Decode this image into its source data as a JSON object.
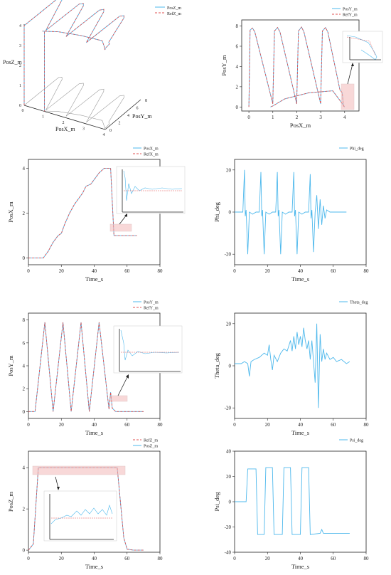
{
  "colors": {
    "actual": "#4db8ec",
    "reference": "#e05050",
    "gray": "#9a9a9a",
    "highlight": "#f3b9b9"
  },
  "chart_data": [
    {
      "id": "xyz3d",
      "type": "line",
      "xlabel": "PosX_m",
      "ylabel": "PosY_m",
      "zlabel": "PosZ_m",
      "x_ticks": [
        "0",
        "1",
        "2",
        "3",
        "4"
      ],
      "y_ticks": [
        "0",
        "2",
        "4",
        "6",
        "8"
      ],
      "z_ticks": [
        "0",
        "1",
        "2",
        "3",
        "4"
      ],
      "series": [
        {
          "name": "PosZ_m"
        },
        {
          "name": "RefZ_m"
        }
      ]
    },
    {
      "id": "xy",
      "type": "line",
      "xlabel": "PosX_m",
      "ylabel": "PosY_m",
      "xlim": [
        -0.3,
        4.6
      ],
      "ylim": [
        -0.4,
        8.6
      ],
      "x_ticks": [
        0,
        1,
        2,
        3,
        4
      ],
      "y_ticks": [
        0,
        2,
        4,
        6,
        8
      ],
      "series": [
        {
          "name": "PosY_m"
        },
        {
          "name": "RefY_m"
        }
      ],
      "path": [
        [
          0,
          0
        ],
        [
          0.05,
          7.6
        ],
        [
          0.15,
          7.8
        ],
        [
          0.25,
          7.4
        ],
        [
          1.0,
          0.3
        ],
        [
          1.0,
          0.6
        ],
        [
          1.07,
          7.5
        ],
        [
          1.2,
          7.85
        ],
        [
          1.3,
          7.4
        ],
        [
          2.0,
          0.3
        ],
        [
          2.0,
          0.6
        ],
        [
          2.07,
          7.5
        ],
        [
          2.2,
          7.9
        ],
        [
          2.3,
          7.4
        ],
        [
          3.0,
          0.3
        ],
        [
          3.0,
          0.6
        ],
        [
          3.07,
          7.5
        ],
        [
          3.2,
          7.85
        ],
        [
          3.3,
          7.4
        ],
        [
          3.8,
          1.7
        ],
        [
          3.9,
          1.4
        ],
        [
          3.95,
          0.1
        ],
        [
          4.0,
          0.0
        ],
        [
          3.85,
          0.5
        ],
        [
          3.5,
          1.6
        ],
        [
          2.5,
          1.4
        ],
        [
          1.5,
          0.8
        ],
        [
          1.0,
          0.1
        ],
        [
          0.9,
          0.0
        ]
      ]
    },
    {
      "id": "posx",
      "type": "line",
      "xlabel": "Time_s",
      "ylabel": "PosX_m",
      "xlim": [
        0,
        80
      ],
      "ylim": [
        -0.3,
        4.4
      ],
      "x_ticks": [
        0,
        20,
        40,
        60,
        80
      ],
      "y_ticks": [
        0,
        2,
        4
      ],
      "series": [
        {
          "name": "PosX_m"
        },
        {
          "name": "RefX_m"
        }
      ],
      "points": [
        [
          0,
          0
        ],
        [
          9,
          0
        ],
        [
          12,
          0.3
        ],
        [
          15,
          0.7
        ],
        [
          18,
          1.0
        ],
        [
          20,
          1.1
        ],
        [
          22,
          1.5
        ],
        [
          25,
          2.0
        ],
        [
          28,
          2.4
        ],
        [
          31,
          2.7
        ],
        [
          33,
          2.9
        ],
        [
          35,
          3.2
        ],
        [
          38,
          3.3
        ],
        [
          41,
          3.6
        ],
        [
          43,
          3.8
        ],
        [
          46,
          4.0
        ],
        [
          49,
          4.0
        ],
        [
          50,
          4.0
        ],
        [
          52,
          1.0
        ],
        [
          54,
          1.0
        ],
        [
          58,
          1.0
        ],
        [
          62,
          1.0
        ],
        [
          66,
          1.0
        ]
      ]
    },
    {
      "id": "phi",
      "type": "line",
      "xlabel": "Time_s",
      "ylabel": "Phi_deg",
      "xlim": [
        0,
        80
      ],
      "ylim": [
        -25,
        25
      ],
      "x_ticks": [
        0,
        20,
        40,
        60,
        80
      ],
      "y_ticks": [
        -20,
        0,
        20
      ],
      "series": [
        {
          "name": "Phi_deg"
        }
      ],
      "points": [
        [
          0,
          0
        ],
        [
          5,
          0
        ],
        [
          6,
          20
        ],
        [
          6.5,
          -2
        ],
        [
          7,
          1
        ],
        [
          8,
          -20
        ],
        [
          9,
          0
        ],
        [
          11,
          -1
        ],
        [
          13,
          0
        ],
        [
          15,
          0
        ],
        [
          16,
          19
        ],
        [
          16.5,
          -2
        ],
        [
          17,
          1
        ],
        [
          18,
          -20
        ],
        [
          19,
          0
        ],
        [
          21,
          -1
        ],
        [
          23,
          0
        ],
        [
          25,
          0
        ],
        [
          26,
          19
        ],
        [
          26.5,
          -2
        ],
        [
          27,
          1
        ],
        [
          28,
          -20
        ],
        [
          29,
          0
        ],
        [
          31,
          -1
        ],
        [
          33,
          0
        ],
        [
          35,
          0
        ],
        [
          36,
          19
        ],
        [
          36.5,
          -2
        ],
        [
          37,
          1
        ],
        [
          38,
          -20
        ],
        [
          39,
          0
        ],
        [
          41,
          -1
        ],
        [
          43,
          0
        ],
        [
          45,
          0
        ],
        [
          46,
          18
        ],
        [
          46.5,
          -3
        ],
        [
          47,
          1
        ],
        [
          48,
          -19
        ],
        [
          49,
          0
        ],
        [
          50,
          8
        ],
        [
          51,
          -8
        ],
        [
          52,
          6
        ],
        [
          53,
          -6
        ],
        [
          54,
          3
        ],
        [
          55,
          -3
        ],
        [
          56,
          1
        ],
        [
          58,
          0
        ],
        [
          62,
          0
        ],
        [
          68,
          0
        ]
      ]
    },
    {
      "id": "posy",
      "type": "line",
      "xlabel": "Time_s",
      "ylabel": "PosY_m",
      "xlim": [
        0,
        80
      ],
      "ylim": [
        -0.6,
        8.6
      ],
      "x_ticks": [
        0,
        20,
        40,
        60,
        80
      ],
      "y_ticks": [
        0,
        2,
        4,
        6,
        8
      ],
      "series": [
        {
          "name": "PosY_m"
        },
        {
          "name": "RefY_m"
        }
      ],
      "points": [
        [
          0,
          0
        ],
        [
          4,
          0
        ],
        [
          10,
          7.8
        ],
        [
          15,
          0
        ],
        [
          21,
          7.8
        ],
        [
          26,
          0
        ],
        [
          32,
          7.8
        ],
        [
          37,
          0
        ],
        [
          43,
          7.8
        ],
        [
          49,
          0.2
        ],
        [
          50,
          1.7
        ],
        [
          51,
          0.3
        ],
        [
          53,
          0
        ],
        [
          60,
          0
        ],
        [
          70,
          0
        ]
      ]
    },
    {
      "id": "theta",
      "type": "line",
      "xlabel": "Time_s",
      "ylabel": "Theta_deg",
      "xlim": [
        0,
        80
      ],
      "ylim": [
        -25,
        25
      ],
      "x_ticks": [
        0,
        20,
        40,
        60,
        80
      ],
      "y_ticks": [
        -20,
        0,
        20
      ],
      "series": [
        {
          "name": "Theta_deg"
        }
      ],
      "points": [
        [
          0,
          1
        ],
        [
          4,
          1
        ],
        [
          6,
          2
        ],
        [
          8,
          1
        ],
        [
          9,
          -5
        ],
        [
          10,
          2
        ],
        [
          12,
          3
        ],
        [
          15,
          4
        ],
        [
          18,
          6
        ],
        [
          20,
          5
        ],
        [
          21,
          10
        ],
        [
          22,
          3
        ],
        [
          23,
          -2
        ],
        [
          24,
          5
        ],
        [
          26,
          2
        ],
        [
          28,
          6
        ],
        [
          30,
          8
        ],
        [
          32,
          7
        ],
        [
          34,
          12
        ],
        [
          35,
          7
        ],
        [
          36,
          14
        ],
        [
          37,
          8
        ],
        [
          38,
          16
        ],
        [
          39,
          10
        ],
        [
          40,
          14
        ],
        [
          41,
          9
        ],
        [
          42,
          18
        ],
        [
          43,
          12
        ],
        [
          44,
          8
        ],
        [
          45,
          12
        ],
        [
          46,
          3
        ],
        [
          47,
          12
        ],
        [
          48,
          2
        ],
        [
          49,
          -8
        ],
        [
          50,
          20
        ],
        [
          51,
          -20
        ],
        [
          52,
          15
        ],
        [
          53,
          2
        ],
        [
          54,
          8
        ],
        [
          55,
          3
        ],
        [
          56,
          6
        ],
        [
          58,
          3
        ],
        [
          60,
          4
        ],
        [
          62,
          2
        ],
        [
          65,
          3
        ],
        [
          68,
          1
        ],
        [
          70,
          2
        ]
      ]
    },
    {
      "id": "posz",
      "type": "line",
      "xlabel": "Time_s",
      "ylabel": "PosZ_m",
      "xlim": [
        0,
        80
      ],
      "ylim": [
        -0.1,
        4.8
      ],
      "x_ticks": [
        0,
        20,
        40,
        60,
        80
      ],
      "y_ticks": [
        0,
        2,
        4
      ],
      "series": [
        {
          "name": "RefZ_m"
        },
        {
          "name": "PosZ_m"
        }
      ],
      "points": [
        [
          0,
          0
        ],
        [
          3,
          0.3
        ],
        [
          6,
          4.0
        ],
        [
          10,
          4.0
        ],
        [
          20,
          4.0
        ],
        [
          30,
          4.0
        ],
        [
          40,
          4.0
        ],
        [
          50,
          4.0
        ],
        [
          54,
          4.0
        ],
        [
          58,
          0.6
        ],
        [
          60,
          0.05
        ],
        [
          64,
          0
        ],
        [
          70,
          0
        ]
      ]
    },
    {
      "id": "psi",
      "type": "line",
      "xlabel": "Time_s",
      "ylabel": "Psi_deg",
      "xlim": [
        0,
        80
      ],
      "ylim": [
        -40,
        40
      ],
      "x_ticks": [
        0,
        20,
        40,
        60,
        80
      ],
      "y_ticks": [
        -40,
        -20,
        0,
        20,
        40
      ],
      "series": [
        {
          "name": "Psi_deg"
        }
      ],
      "points": [
        [
          0,
          0
        ],
        [
          7,
          0
        ],
        [
          8,
          26
        ],
        [
          13,
          26
        ],
        [
          14,
          -26
        ],
        [
          18,
          -26
        ],
        [
          19,
          27
        ],
        [
          23,
          27
        ],
        [
          24,
          -26
        ],
        [
          29,
          -26
        ],
        [
          30,
          27
        ],
        [
          34,
          27
        ],
        [
          35,
          -26
        ],
        [
          40,
          -26
        ],
        [
          41,
          27
        ],
        [
          45,
          27
        ],
        [
          46,
          -26
        ],
        [
          52,
          -25
        ],
        [
          53,
          -22
        ],
        [
          54,
          -25
        ],
        [
          70,
          -25
        ]
      ]
    }
  ]
}
